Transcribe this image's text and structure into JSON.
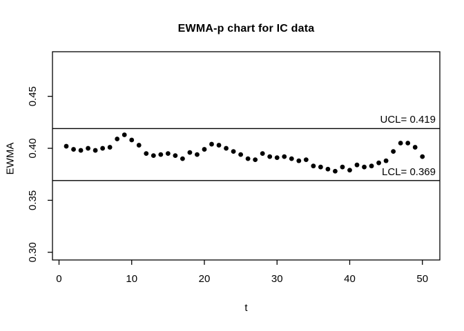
{
  "figure": {
    "title": "EWMA-p chart for IC data",
    "x_axis_label": "t",
    "y_axis_label": "EWMA",
    "ucl_label": "UCL= 0.419",
    "lcl_label": "LCL= 0.369",
    "background_color": "#ffffff",
    "foreground_color": "#000000"
  },
  "chart_data": {
    "type": "scatter",
    "title": "EWMA-p chart for IC data",
    "xlabel": "t",
    "ylabel": "EWMA",
    "xlim": [
      -0.9,
      52.4
    ],
    "ylim": [
      0.2926,
      0.4929
    ],
    "grid": false,
    "legend_position": "none",
    "point_color": "#000000",
    "line_color": "#000000",
    "x_ticks": [
      0,
      10,
      20,
      30,
      40,
      50
    ],
    "x_tick_labels": [
      "0",
      "10",
      "20",
      "30",
      "40",
      "50"
    ],
    "y_ticks": [
      0.3,
      0.35,
      0.4,
      0.45
    ],
    "y_tick_labels": [
      "0.30",
      "0.35",
      "0.40",
      "0.45"
    ],
    "control_limits": {
      "ucl": {
        "value": 0.419,
        "label": "UCL= 0.419"
      },
      "lcl": {
        "value": 0.369,
        "label": "LCL= 0.369"
      }
    },
    "x": [
      1,
      2,
      3,
      4,
      5,
      6,
      7,
      8,
      9,
      10,
      11,
      12,
      13,
      14,
      15,
      16,
      17,
      18,
      19,
      20,
      21,
      22,
      23,
      24,
      25,
      26,
      27,
      28,
      29,
      30,
      31,
      32,
      33,
      34,
      35,
      36,
      37,
      38,
      39,
      40,
      41,
      42,
      43,
      44,
      45,
      46,
      47,
      48,
      49,
      50
    ],
    "y": [
      0.402,
      0.399,
      0.398,
      0.4,
      0.398,
      0.4,
      0.401,
      0.409,
      0.413,
      0.408,
      0.403,
      0.395,
      0.393,
      0.394,
      0.395,
      0.393,
      0.39,
      0.396,
      0.394,
      0.399,
      0.404,
      0.403,
      0.4,
      0.397,
      0.394,
      0.39,
      0.389,
      0.395,
      0.392,
      0.391,
      0.392,
      0.39,
      0.388,
      0.389,
      0.383,
      0.382,
      0.38,
      0.378,
      0.382,
      0.379,
      0.384,
      0.382,
      0.383,
      0.386,
      0.388,
      0.397,
      0.405,
      0.405,
      0.401,
      0.392
    ]
  }
}
